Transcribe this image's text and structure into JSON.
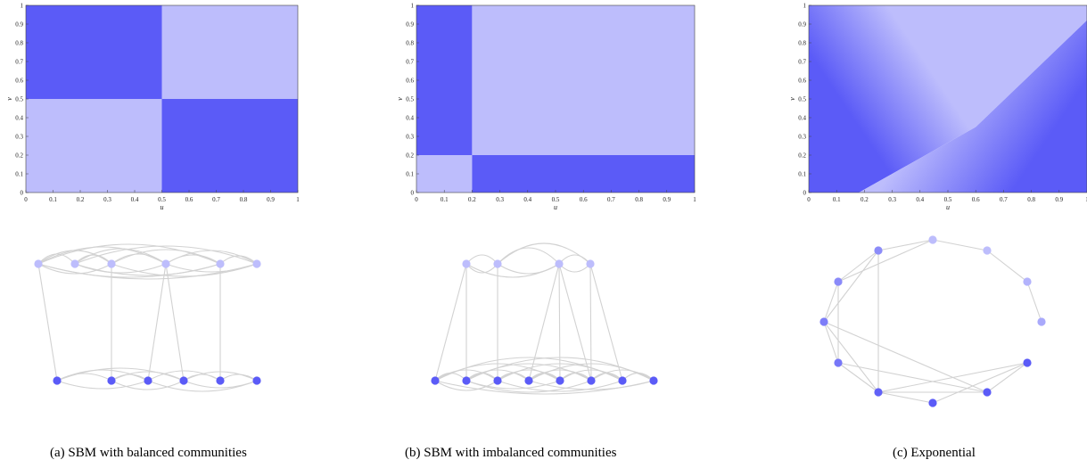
{
  "colors": {
    "dark": "#5b5bf7",
    "light": "#bdbdfc",
    "edge": "#d2d2d2",
    "mid": "#8c8cf9"
  },
  "captions": [
    "(a) SBM with balanced communities",
    "(b) SBM with imbalanced communities",
    "(c) Exponential"
  ],
  "chart_data": [
    {
      "type": "heatmap",
      "xlabel": "u",
      "ylabel": "v",
      "xlim": [
        0,
        1
      ],
      "ylim": [
        0,
        1
      ],
      "xticks": [
        "0",
        "0.1",
        "0.2",
        "0.3",
        "0.4",
        "0.5",
        "0.6",
        "0.7",
        "0.8",
        "0.9",
        "1"
      ],
      "yticks": [
        "0",
        "0.1",
        "0.2",
        "0.3",
        "0.4",
        "0.5",
        "0.6",
        "0.7",
        "0.8",
        "0.9",
        "1"
      ],
      "blocks": [
        {
          "u": [
            0,
            0.5
          ],
          "v": [
            0.5,
            1
          ],
          "level": "high"
        },
        {
          "u": [
            0.5,
            1
          ],
          "v": [
            0.5,
            1
          ],
          "level": "low"
        },
        {
          "u": [
            0,
            0.5
          ],
          "v": [
            0,
            0.5
          ],
          "level": "low"
        },
        {
          "u": [
            0.5,
            1
          ],
          "v": [
            0,
            0.5
          ],
          "level": "high"
        }
      ]
    },
    {
      "type": "heatmap",
      "xlabel": "u",
      "ylabel": "v",
      "xlim": [
        0,
        1
      ],
      "ylim": [
        0,
        1
      ],
      "xticks": [
        "0",
        "0.1",
        "0.2",
        "0.3",
        "0.4",
        "0.5",
        "0.6",
        "0.7",
        "0.8",
        "0.9",
        "1"
      ],
      "yticks": [
        "0",
        "0.1",
        "0.2",
        "0.3",
        "0.4",
        "0.5",
        "0.6",
        "0.7",
        "0.8",
        "0.9",
        "1"
      ],
      "blocks": [
        {
          "u": [
            0,
            0.2
          ],
          "v": [
            0.2,
            1
          ],
          "level": "high"
        },
        {
          "u": [
            0.2,
            1
          ],
          "v": [
            0.2,
            1
          ],
          "level": "low"
        },
        {
          "u": [
            0,
            0.2
          ],
          "v": [
            0,
            0.2
          ],
          "level": "low"
        },
        {
          "u": [
            0.2,
            1
          ],
          "v": [
            0,
            0.2
          ],
          "level": "high"
        }
      ]
    },
    {
      "type": "heatmap",
      "xlabel": "u",
      "ylabel": "v",
      "xlim": [
        0,
        1
      ],
      "ylim": [
        0,
        1
      ],
      "xticks": [
        "0",
        "0.1",
        "0.2",
        "0.3",
        "0.4",
        "0.5",
        "0.6",
        "0.7",
        "0.8",
        "0.9",
        "1"
      ],
      "yticks": [
        "0",
        "0.1",
        "0.2",
        "0.3",
        "0.4",
        "0.5",
        "0.6",
        "0.7",
        "0.8",
        "0.9",
        "1"
      ],
      "gradient": "lightest along v = 1.5u - 0.25 (high level away from that line)"
    }
  ]
}
